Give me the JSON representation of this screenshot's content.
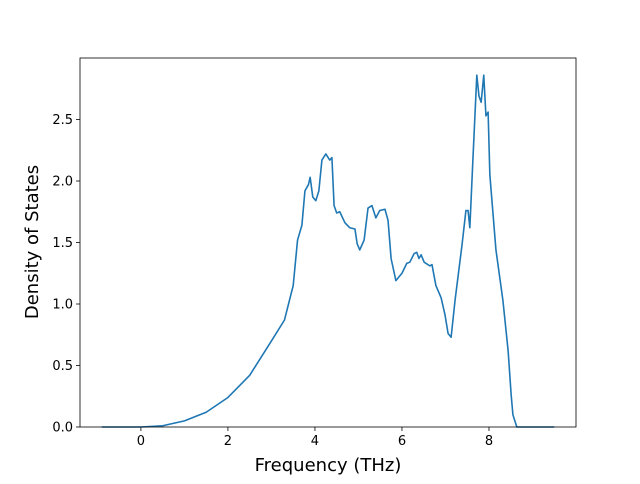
{
  "chart_data": {
    "type": "line",
    "xlabel": "Frequency (THz)",
    "ylabel": "Density of States",
    "x": [
      -0.9,
      0,
      0.5,
      1.0,
      1.5,
      2.0,
      2.5,
      3.0,
      3.3,
      3.5,
      3.6,
      3.7,
      3.77,
      3.85,
      3.89,
      3.95,
      4.02,
      4.09,
      4.16,
      4.25,
      4.34,
      4.39,
      4.44,
      4.5,
      4.57,
      4.69,
      4.8,
      4.92,
      4.97,
      5.03,
      5.13,
      5.22,
      5.31,
      5.4,
      5.49,
      5.61,
      5.68,
      5.75,
      5.86,
      6.0,
      6.11,
      6.18,
      6.28,
      6.34,
      6.39,
      6.44,
      6.51,
      6.64,
      6.69,
      6.78,
      6.9,
      6.99,
      7.06,
      7.13,
      7.22,
      7.38,
      7.47,
      7.52,
      7.56,
      7.63,
      7.72,
      7.77,
      7.82,
      7.88,
      7.93,
      7.98,
      8.02,
      8.16,
      8.32,
      8.44,
      8.51,
      8.55,
      8.64,
      9.5
    ],
    "series": [
      {
        "color": "#1f77b4",
        "values": [
          0,
          0,
          0.01,
          0.05,
          0.12,
          0.24,
          0.42,
          0.7,
          0.87,
          1.15,
          1.52,
          1.64,
          1.92,
          1.97,
          2.03,
          1.87,
          1.84,
          1.92,
          2.17,
          2.22,
          2.17,
          2.19,
          1.8,
          1.74,
          1.75,
          1.66,
          1.62,
          1.61,
          1.49,
          1.44,
          1.52,
          1.78,
          1.8,
          1.7,
          1.76,
          1.77,
          1.68,
          1.37,
          1.19,
          1.25,
          1.33,
          1.34,
          1.41,
          1.42,
          1.37,
          1.4,
          1.34,
          1.31,
          1.32,
          1.15,
          1.05,
          0.91,
          0.76,
          0.73,
          1.03,
          1.48,
          1.76,
          1.76,
          1.62,
          2.17,
          2.86,
          2.69,
          2.64,
          2.86,
          2.53,
          2.56,
          2.05,
          1.44,
          1.03,
          0.62,
          0.26,
          0.1,
          0,
          0
        ]
      }
    ],
    "xlim": [
      -1.4,
      10.0
    ],
    "ylim": [
      0,
      3.0
    ],
    "xticks": [
      0,
      2,
      4,
      6,
      8
    ],
    "yticks": [
      {
        "value": 0,
        "label": "0.0"
      },
      0.5,
      {
        "value": 1,
        "label": "1.0"
      },
      1.5,
      {
        "value": 2,
        "label": "2.0"
      },
      2.5
    ]
  }
}
